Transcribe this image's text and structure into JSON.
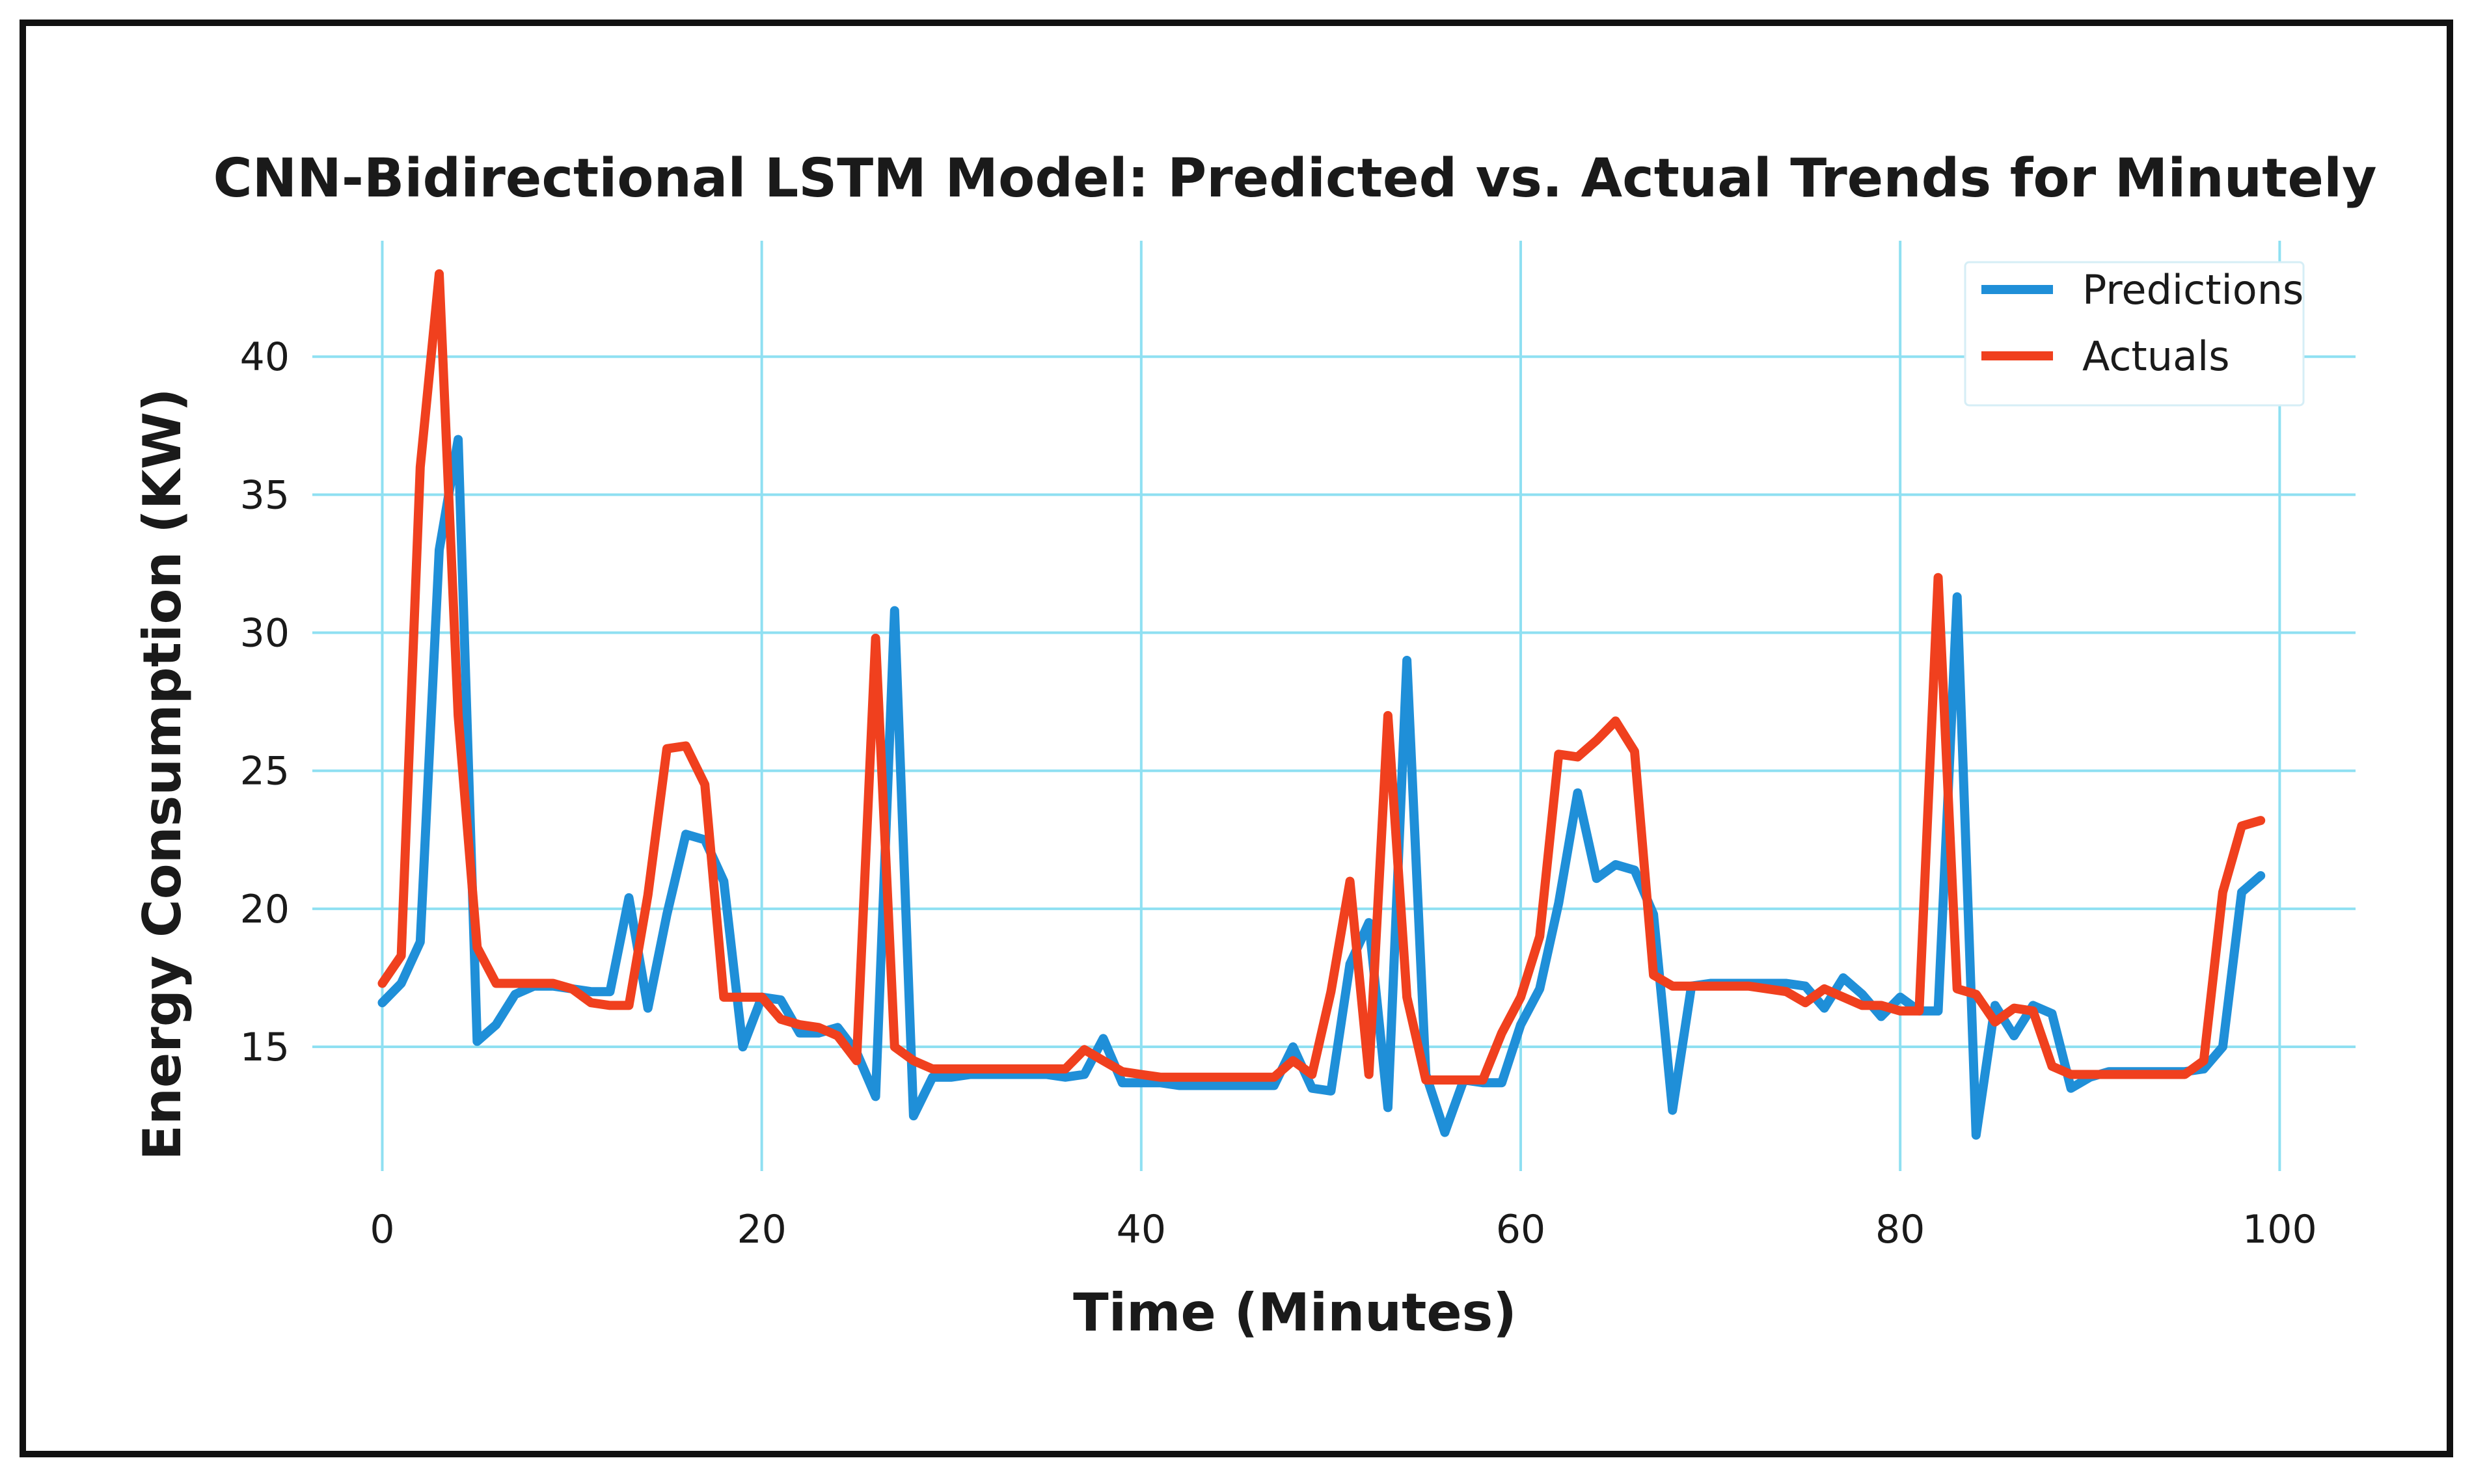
{
  "chart_data": {
    "type": "line",
    "title": "CNN-Bidirectional LSTM Model: Predicted vs. Actual Trends for Minutely",
    "xlabel": "Time (Minutes)",
    "ylabel": "Energy Consumption (KW)",
    "xlim": [
      -3,
      104
    ],
    "ylim": [
      10.5,
      44.2
    ],
    "xticks": [
      0,
      20,
      40,
      60,
      80,
      100
    ],
    "yticks": [
      15,
      20,
      25,
      30,
      35,
      40
    ],
    "grid": true,
    "legend_position": "top-right",
    "x": [
      0,
      1,
      2,
      3,
      4,
      5,
      6,
      7,
      8,
      9,
      10,
      11,
      12,
      13,
      14,
      15,
      16,
      17,
      18,
      19,
      20,
      21,
      22,
      23,
      24,
      25,
      26,
      27,
      28,
      29,
      30,
      31,
      32,
      33,
      34,
      35,
      36,
      37,
      38,
      39,
      40,
      41,
      42,
      43,
      44,
      45,
      46,
      47,
      48,
      49,
      50,
      51,
      52,
      53,
      54,
      55,
      56,
      57,
      58,
      59,
      60,
      61,
      62,
      63,
      64,
      65,
      66,
      67,
      68,
      69,
      70,
      71,
      72,
      73,
      74,
      75,
      76,
      77,
      78,
      79,
      80,
      81,
      82,
      83,
      84,
      85,
      86,
      87,
      88,
      89,
      90,
      91,
      92,
      93,
      94,
      95,
      96,
      97,
      98,
      99
    ],
    "series": [
      {
        "name": "Predictions",
        "color": "#1f8fd8",
        "values": [
          16.6,
          17.3,
          18.8,
          33.0,
          37.0,
          15.2,
          15.8,
          16.9,
          17.2,
          17.2,
          17.1,
          17.0,
          17.0,
          20.4,
          16.4,
          19.8,
          22.7,
          22.5,
          21.0,
          15.0,
          16.8,
          16.7,
          15.5,
          15.5,
          15.7,
          14.8,
          13.2,
          30.8,
          12.5,
          13.9,
          13.9,
          14.0,
          14.0,
          14.0,
          14.0,
          14.0,
          13.9,
          14.0,
          15.3,
          13.7,
          13.7,
          13.7,
          13.6,
          13.6,
          13.6,
          13.6,
          13.6,
          13.6,
          15.0,
          13.5,
          13.4,
          18.0,
          19.5,
          12.8,
          29.0,
          14.0,
          11.9,
          13.8,
          13.7,
          13.7,
          15.8,
          17.1,
          20.2,
          24.2,
          21.1,
          21.6,
          21.4,
          19.8,
          12.7,
          17.2,
          17.3,
          17.3,
          17.3,
          17.3,
          17.3,
          17.2,
          16.4,
          17.5,
          16.9,
          16.1,
          16.8,
          16.3,
          16.3,
          31.3,
          11.8,
          16.5,
          15.4,
          16.5,
          16.2,
          13.5,
          13.9,
          14.1,
          14.1,
          14.1,
          14.1,
          14.1,
          14.2,
          15.0,
          20.6,
          21.2
        ]
      },
      {
        "name": "Actuals",
        "color": "#f0401e",
        "values": [
          17.3,
          18.3,
          36.0,
          43.0,
          27.0,
          18.6,
          17.3,
          17.3,
          17.3,
          17.3,
          17.1,
          16.6,
          16.5,
          16.5,
          20.5,
          25.8,
          25.9,
          24.5,
          16.8,
          16.8,
          16.8,
          16.0,
          15.8,
          15.7,
          15.4,
          14.5,
          29.8,
          15.0,
          14.5,
          14.2,
          14.2,
          14.2,
          14.2,
          14.2,
          14.2,
          14.2,
          14.2,
          14.9,
          14.5,
          14.1,
          14.0,
          13.9,
          13.9,
          13.9,
          13.9,
          13.9,
          13.9,
          13.9,
          14.5,
          14.0,
          17.0,
          21.0,
          14.0,
          27.0,
          16.8,
          13.8,
          13.8,
          13.8,
          13.8,
          15.5,
          16.8,
          19.0,
          25.6,
          25.5,
          26.1,
          26.8,
          25.7,
          17.6,
          17.2,
          17.2,
          17.2,
          17.2,
          17.2,
          17.1,
          17.0,
          16.6,
          17.1,
          16.8,
          16.5,
          16.5,
          16.3,
          16.3,
          32.0,
          17.1,
          16.9,
          15.9,
          16.4,
          16.3,
          14.3,
          14.0,
          14.0,
          14.0,
          14.0,
          14.0,
          14.0,
          14.0,
          14.5,
          20.6,
          23.0,
          23.2
        ]
      }
    ]
  }
}
